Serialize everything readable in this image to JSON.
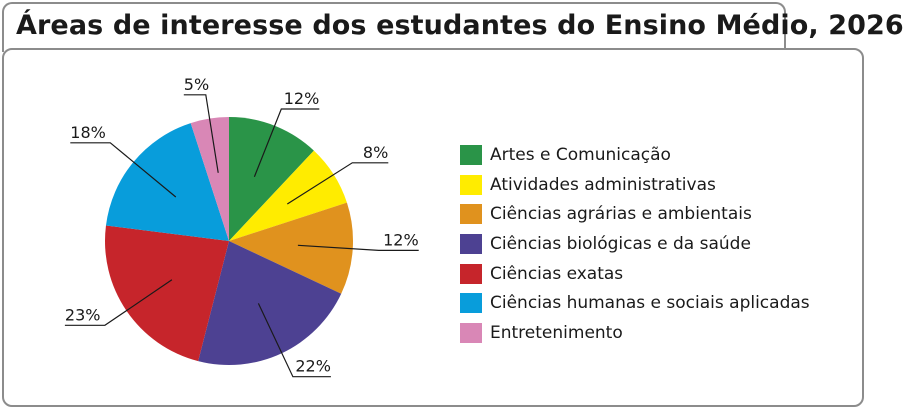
{
  "title": "Áreas de interesse dos estudantes do Ensino Médio, 2026",
  "colors": {
    "Artes e Comunicação": "#2a9448",
    "Atividades administrativas": "#ffec00",
    "Ciências agrárias e ambientais": "#e0921e",
    "Ciências biológicas e da saúde": "#4d4192",
    "Ciências exatas": "#c6252b",
    "Ciências humanas e sociais aplicadas": "#089ddb",
    "Entretenimento": "#d987b6"
  },
  "chart_data": {
    "type": "pie",
    "title": "Áreas de interesse dos estudantes do Ensino Médio, 2026",
    "categories": [
      "Artes e Comunicação",
      "Atividades administrativas",
      "Ciências agrárias e ambientais",
      "Ciências biológicas e da saúde",
      "Ciências exatas",
      "Ciências humanas e sociais aplicadas",
      "Entretenimento"
    ],
    "values": [
      12,
      8,
      12,
      22,
      23,
      18,
      5
    ],
    "value_labels": [
      "12%",
      "8%",
      "12%",
      "22%",
      "23%",
      "18%",
      "5%"
    ],
    "legend_position": "right"
  }
}
